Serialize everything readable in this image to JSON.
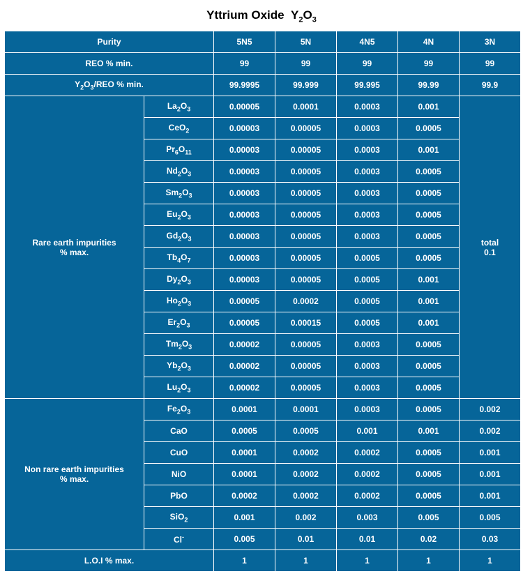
{
  "title_html": "Yttrium Oxide&nbsp;&nbsp;Y<sub>2</sub>O<sub>3</sub>",
  "header": {
    "purity": "Purity",
    "grades": [
      "5N5",
      "5N",
      "4N5",
      "4N",
      "3N"
    ]
  },
  "reo": {
    "label": "REO % min.",
    "values": [
      "99",
      "99",
      "99",
      "99",
      "99"
    ]
  },
  "y2o3reo": {
    "label_html": "Y<sub>2</sub>O<sub>3</sub>/REO % min.",
    "values": [
      "99.9995",
      "99.999",
      "99.995",
      "99.99",
      "99.9"
    ]
  },
  "rare": {
    "label_html": "Rare earth impurities<br>% max.",
    "total_html": "total<br>0.1",
    "rows": [
      {
        "f": "La<sub>2</sub>O<sub>3</sub>",
        "v": [
          "0.00005",
          "0.0001",
          "0.0003",
          "0.001"
        ]
      },
      {
        "f": "CeO<sub>2</sub>",
        "v": [
          "0.00003",
          "0.00005",
          "0.0003",
          "0.0005"
        ]
      },
      {
        "f": "Pr<sub>6</sub>O<sub>11</sub>",
        "v": [
          "0.00003",
          "0.00005",
          "0.0003",
          "0.001"
        ]
      },
      {
        "f": "Nd<sub>2</sub>O<sub>3</sub>",
        "v": [
          "0.00003",
          "0.00005",
          "0.0003",
          "0.0005"
        ]
      },
      {
        "f": "Sm<sub>2</sub>O<sub>3</sub>",
        "v": [
          "0.00003",
          "0.00005",
          "0.0003",
          "0.0005"
        ]
      },
      {
        "f": "Eu<sub>2</sub>O<sub>3</sub>",
        "v": [
          "0.00003",
          "0.00005",
          "0.0003",
          "0.0005"
        ]
      },
      {
        "f": "Gd<sub>2</sub>O<sub>3</sub>",
        "v": [
          "0.00003",
          "0.00005",
          "0.0003",
          "0.0005"
        ]
      },
      {
        "f": "Tb<sub>4</sub>O<sub>7</sub>",
        "v": [
          "0.00003",
          "0.00005",
          "0.0005",
          "0.0005"
        ]
      },
      {
        "f": "Dy<sub>2</sub>O<sub>3</sub>",
        "v": [
          "0.00003",
          "0.00005",
          "0.0005",
          "0.001"
        ]
      },
      {
        "f": "Ho<sub>2</sub>O<sub>3</sub>",
        "v": [
          "0.00005",
          "0.0002",
          "0.0005",
          "0.001"
        ]
      },
      {
        "f": "Er<sub>2</sub>O<sub>3</sub>",
        "v": [
          "0.00005",
          "0.00015",
          "0.0005",
          "0.001"
        ]
      },
      {
        "f": "Tm<sub>2</sub>O<sub>3</sub>",
        "v": [
          "0.00002",
          "0.00005",
          "0.0003",
          "0.0005"
        ]
      },
      {
        "f": "Yb<sub>2</sub>O<sub>3</sub>",
        "v": [
          "0.00002",
          "0.00005",
          "0.0003",
          "0.0005"
        ]
      },
      {
        "f": "Lu<sub>2</sub>O<sub>3</sub>",
        "v": [
          "0.00002",
          "0.00005",
          "0.0003",
          "0.0005"
        ]
      }
    ]
  },
  "nonrare": {
    "label_html": "Non rare earth impurities<br>% max.",
    "rows": [
      {
        "f": "Fe<sub>2</sub>O<sub>3</sub>",
        "v": [
          "0.0001",
          "0.0001",
          "0.0003",
          "0.0005",
          "0.002"
        ]
      },
      {
        "f": "CaO",
        "v": [
          "0.0005",
          "0.0005",
          "0.001",
          "0.001",
          "0.002"
        ]
      },
      {
        "f": "CuO",
        "v": [
          "0.0001",
          "0.0002",
          "0.0002",
          "0.0005",
          "0.001"
        ]
      },
      {
        "f": "NiO",
        "v": [
          "0.0001",
          "0.0002",
          "0.0002",
          "0.0005",
          "0.001"
        ]
      },
      {
        "f": "PbO",
        "v": [
          "0.0002",
          "0.0002",
          "0.0002",
          "0.0005",
          "0.001"
        ]
      },
      {
        "f": "SiO<sub>2</sub>",
        "v": [
          "0.001",
          "0.002",
          "0.003",
          "0.005",
          "0.005"
        ]
      },
      {
        "f": "Cl<sup>-</sup>",
        "v": [
          "0.005",
          "0.01",
          "0.01",
          "0.02",
          "0.03"
        ]
      }
    ]
  },
  "loi": {
    "label": "L.O.I % max.",
    "values": [
      "1",
      "1",
      "1",
      "1",
      "1"
    ]
  }
}
